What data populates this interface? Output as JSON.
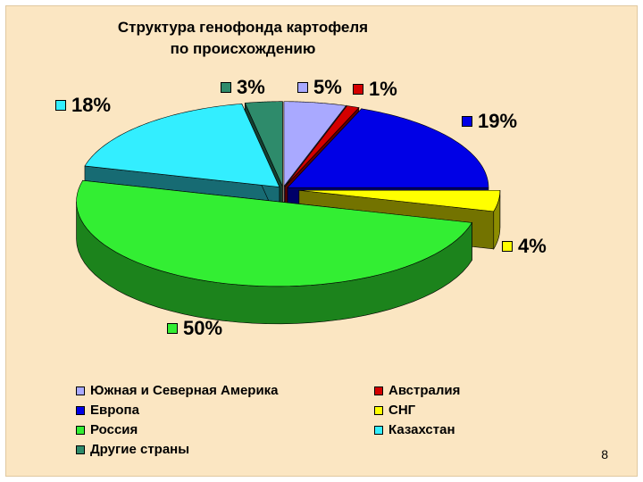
{
  "chart_data": {
    "type": "pie",
    "title_line1": "Структура генофонда картофеля",
    "title_line2": "по происхождению",
    "slices": [
      {
        "name": "Южная и Северная Америка",
        "value": 5,
        "label": "5%",
        "color": "#a9a9ff"
      },
      {
        "name": "Австралия",
        "value": 1,
        "label": "1%",
        "color": "#d40000"
      },
      {
        "name": "Европа",
        "value": 19,
        "label": "19%",
        "color": "#0000e6"
      },
      {
        "name": "СНГ",
        "value": 4,
        "label": "4%",
        "color": "#ffff00"
      },
      {
        "name": "Россия",
        "value": 50,
        "label": "50%",
        "color": "#33ee33"
      },
      {
        "name": "Казахстан",
        "value": 18,
        "label": "18%",
        "color": "#33eeff"
      },
      {
        "name": "Другие страны",
        "value": 3,
        "label": "3%",
        "color": "#2e8b6b"
      }
    ],
    "legend_placement": "bottom"
  },
  "page_number": "8"
}
